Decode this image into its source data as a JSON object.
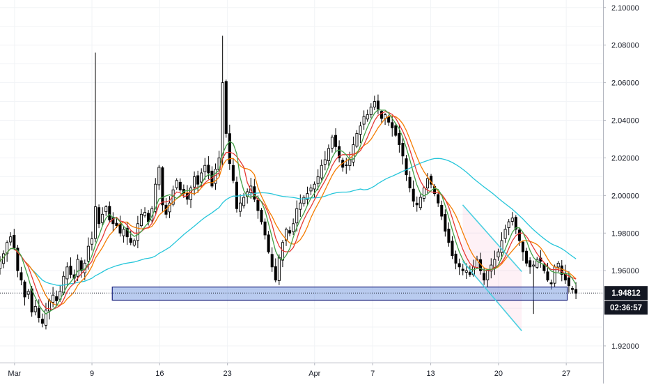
{
  "chart_data": {
    "type": "candlestick",
    "x_axis": {
      "labels": [
        "Mar",
        "9",
        "16",
        "23",
        "Apr",
        "7",
        "13",
        "20",
        "27"
      ],
      "label_day_index": [
        0,
        8,
        15,
        22,
        31,
        37,
        43,
        50,
        57
      ],
      "day_range": [
        -1.5,
        60.8
      ]
    },
    "y_axis": {
      "ticks": [
        "2.10000",
        "2.08000",
        "2.06000",
        "2.04000",
        "2.02000",
        "2.00000",
        "1.98000",
        "1.96000",
        "1.92000"
      ],
      "tick_values": [
        2.1,
        2.08,
        2.06,
        2.04,
        2.02,
        2.0,
        1.98,
        1.96,
        1.92
      ],
      "range": [
        1.9111,
        2.104
      ],
      "position": "right"
    },
    "current_price": {
      "value": 1.94812,
      "label": "1.94812",
      "countdown": "02:36:57"
    },
    "closes": [
      1.965,
      1.969,
      1.975,
      1.978,
      1.972,
      1.96,
      1.955,
      1.946,
      1.949,
      1.938,
      1.941,
      1.935,
      1.932,
      1.939,
      1.944,
      1.947,
      1.944,
      1.949,
      1.957,
      1.962,
      1.958,
      1.956,
      1.966,
      1.96,
      1.964,
      1.973,
      1.977,
      1.994,
      1.985,
      1.99,
      1.994,
      1.987,
      1.985,
      1.984,
      1.98,
      1.982,
      1.978,
      1.975,
      1.976,
      1.985,
      1.99,
      1.991,
      1.986,
      1.993,
      2.006,
      2.015,
      1.995,
      1.99,
      1.996,
      2.003,
      2.008,
      2.003,
      2.001,
      1.998,
      2.004,
      2.01,
      2.006,
      2.012,
      2.016,
      2.012,
      2.005,
      2.014,
      2.02,
      2.06,
      2.033,
      2.017,
      2.008,
      1.993,
      1.996,
      1.999,
      2.002,
      2.005,
      1.998,
      1.992,
      1.986,
      1.979,
      1.97,
      1.962,
      1.955,
      1.967,
      1.975,
      1.982,
      1.98,
      1.985,
      1.993,
      1.996,
      1.999,
      2.001,
      2.004,
      2.006,
      2.01,
      2.016,
      2.019,
      2.025,
      2.031,
      2.026,
      2.02,
      2.015,
      2.016,
      2.019,
      2.027,
      2.033,
      2.037,
      2.042,
      2.043,
      2.047,
      2.05,
      2.046,
      2.041,
      2.043,
      2.039,
      2.036,
      2.032,
      2.027,
      2.021,
      2.011,
      2.004,
      1.997,
      1.995,
      1.999,
      2.004,
      2.009,
      2.006,
      2.001,
      1.996,
      1.989,
      1.981,
      1.975,
      1.968,
      1.964,
      1.962,
      1.96,
      1.96,
      1.958,
      1.962,
      1.966,
      1.96,
      1.955,
      1.96,
      1.963,
      1.966,
      1.97,
      1.976,
      1.982,
      1.986,
      1.988,
      1.982,
      1.976,
      1.97,
      1.964,
      1.962,
      1.963,
      1.966,
      1.965,
      1.96,
      1.955,
      1.953,
      1.962,
      1.964,
      1.958,
      1.955,
      1.952,
      1.95,
      1.948
    ]
  }
}
